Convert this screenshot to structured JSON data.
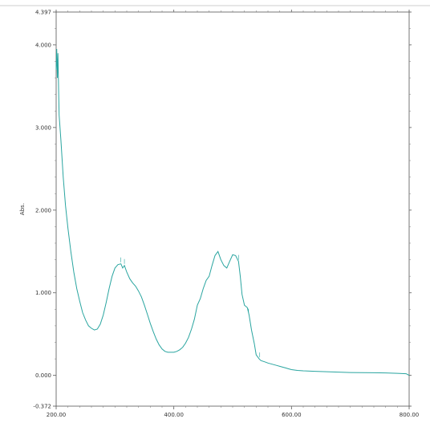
{
  "chart_data": {
    "type": "line",
    "title": "",
    "xlabel": "",
    "ylabel": "Abs.",
    "xlim": [
      200,
      800
    ],
    "ylim": [
      -0.372,
      4.397
    ],
    "x_ticks": [
      {
        "value": 200,
        "label": "200.00"
      },
      {
        "value": 400,
        "label": "400.00"
      },
      {
        "value": 600,
        "label": "600.00"
      },
      {
        "value": 800,
        "label": "800.00"
      }
    ],
    "y_ticks": [
      {
        "value": 4.397,
        "label": "4.397"
      },
      {
        "value": 4.0,
        "label": "4.000"
      },
      {
        "value": 3.0,
        "label": "3.000"
      },
      {
        "value": 2.0,
        "label": "2.000"
      },
      {
        "value": 1.0,
        "label": "1.000"
      },
      {
        "value": 0.0,
        "label": "0.000"
      },
      {
        "value": -0.372,
        "label": "-0.372"
      }
    ],
    "grid": false,
    "line_color": "#2aa5a0",
    "series": [
      {
        "x": [
          200,
          201,
          202,
          203,
          205,
          208,
          212,
          216,
          220,
          225,
          230,
          235,
          240,
          245,
          250,
          255,
          260,
          265,
          270,
          275,
          280,
          285,
          290,
          295,
          300,
          305,
          310,
          313,
          316,
          320,
          325,
          330,
          335,
          340,
          345,
          350,
          355,
          360,
          365,
          370,
          375,
          380,
          385,
          390,
          395,
          400,
          405,
          410,
          415,
          420,
          425,
          430,
          435,
          440,
          445,
          450,
          455,
          460,
          465,
          470,
          475,
          480,
          485,
          490,
          495,
          500,
          505,
          510,
          513,
          516,
          520,
          525,
          528,
          532,
          537,
          540,
          545,
          548,
          552,
          556,
          560,
          565,
          570,
          575,
          580,
          585,
          590,
          595,
          600,
          610,
          620,
          640,
          660,
          680,
          700,
          720,
          740,
          760,
          780,
          795,
          800
        ],
        "y": [
          3.7,
          3.95,
          3.6,
          3.9,
          3.15,
          2.85,
          2.4,
          2.05,
          1.78,
          1.5,
          1.25,
          1.05,
          0.9,
          0.76,
          0.67,
          0.6,
          0.57,
          0.55,
          0.56,
          0.62,
          0.73,
          0.88,
          1.05,
          1.2,
          1.3,
          1.34,
          1.35,
          1.3,
          1.33,
          1.25,
          1.17,
          1.12,
          1.08,
          1.02,
          0.95,
          0.85,
          0.74,
          0.63,
          0.53,
          0.44,
          0.37,
          0.32,
          0.29,
          0.28,
          0.28,
          0.28,
          0.29,
          0.31,
          0.34,
          0.39,
          0.46,
          0.56,
          0.68,
          0.85,
          0.93,
          1.05,
          1.15,
          1.2,
          1.33,
          1.45,
          1.5,
          1.4,
          1.33,
          1.3,
          1.38,
          1.46,
          1.45,
          1.38,
          1.2,
          0.98,
          0.85,
          0.82,
          0.73,
          0.55,
          0.38,
          0.25,
          0.2,
          0.18,
          0.17,
          0.16,
          0.15,
          0.14,
          0.13,
          0.12,
          0.11,
          0.1,
          0.09,
          0.08,
          0.07,
          0.06,
          0.055,
          0.05,
          0.045,
          0.04,
          0.035,
          0.033,
          0.032,
          0.03,
          0.025,
          0.02,
          0.0
        ]
      }
    ]
  }
}
